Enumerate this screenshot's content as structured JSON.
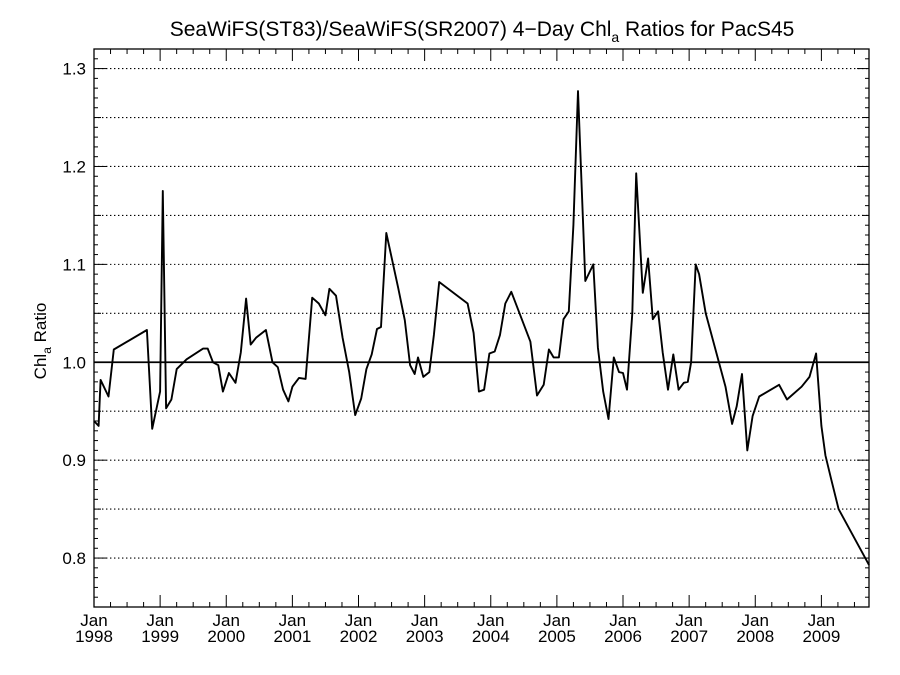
{
  "chart_data": {
    "type": "line",
    "title": {
      "pre": "SeaWiFS(ST83)/SeaWiFS(SR2007) 4−Day Chl",
      "sub": "a",
      "post": " Ratios for PacS45"
    },
    "ylabel": {
      "pre": "Chl",
      "sub": "a",
      "post": " Ratio"
    },
    "xlim": [
      1998.0,
      2009.72
    ],
    "ylim": [
      0.75,
      1.32
    ],
    "yticks": [
      0.8,
      0.9,
      1.0,
      1.1,
      1.2,
      1.3
    ],
    "ytick_labels": [
      "0.8",
      "0.9",
      "1.0",
      "1.1",
      "1.2",
      "1.3"
    ],
    "ygrid": [
      0.75,
      0.8,
      0.85,
      0.9,
      0.95,
      1.05,
      1.1,
      1.15,
      1.2,
      1.25,
      1.3
    ],
    "xticks": [
      1998,
      1999,
      2000,
      2001,
      2002,
      2003,
      2004,
      2005,
      2006,
      2007,
      2008,
      2009
    ],
    "xtick_month": "Jan",
    "xtick_years": [
      "1998",
      "1999",
      "2000",
      "2001",
      "2002",
      "2003",
      "2004",
      "2005",
      "2006",
      "2007",
      "2008",
      "2009"
    ],
    "reference_line": 1.0,
    "grid": "horizontal-dotted",
    "series": [
      {
        "x": [
          1998.0,
          1998.07,
          1998.1,
          1998.22,
          1998.3,
          1998.8,
          1998.88,
          1999.0,
          1999.04,
          1999.09,
          1999.17,
          1999.25,
          1999.4,
          1999.65,
          1999.72,
          1999.8,
          1999.88,
          1999.95,
          2000.04,
          2000.14,
          2000.22,
          2000.3,
          2000.37,
          2000.45,
          2000.6,
          2000.7,
          2000.78,
          2000.86,
          2000.94,
          2001.0,
          2001.1,
          2001.2,
          2001.3,
          2001.4,
          2001.5,
          2001.56,
          2001.66,
          2001.76,
          2001.86,
          2001.95,
          2002.04,
          2002.12,
          2002.2,
          2002.28,
          2002.34,
          2002.42,
          2002.6,
          2002.7,
          2002.78,
          2002.85,
          2002.9,
          2002.98,
          2003.07,
          2003.14,
          2003.22,
          2003.65,
          2003.74,
          2003.82,
          2003.9,
          2003.98,
          2004.06,
          2004.14,
          2004.22,
          2004.31,
          2004.6,
          2004.7,
          2004.8,
          2004.88,
          2004.95,
          2005.03,
          2005.1,
          2005.18,
          2005.25,
          2005.32,
          2005.43,
          2005.55,
          2005.62,
          2005.7,
          2005.78,
          2005.86,
          2005.94,
          2006.0,
          2006.06,
          2006.14,
          2006.2,
          2006.3,
          2006.38,
          2006.45,
          2006.53,
          2006.6,
          2006.68,
          2006.76,
          2006.84,
          2006.92,
          2006.98,
          2007.03,
          2007.1,
          2007.15,
          2007.25,
          2007.55,
          2007.65,
          2007.72,
          2007.8,
          2007.88,
          2007.96,
          2008.06,
          2008.36,
          2008.48,
          2008.7,
          2008.82,
          2008.92,
          2009.0,
          2009.06,
          2009.15,
          2009.26,
          2009.72
        ],
        "y": [
          0.94,
          0.935,
          0.982,
          0.965,
          1.013,
          1.033,
          0.932,
          0.97,
          1.175,
          0.953,
          0.962,
          0.993,
          1.003,
          1.014,
          1.014,
          1.0,
          0.997,
          0.97,
          0.989,
          0.979,
          1.01,
          1.065,
          1.018,
          1.025,
          1.033,
          1.0,
          0.995,
          0.972,
          0.96,
          0.975,
          0.984,
          0.983,
          1.066,
          1.06,
          1.048,
          1.075,
          1.068,
          1.025,
          0.99,
          0.946,
          0.963,
          0.993,
          1.008,
          1.034,
          1.036,
          1.132,
          1.076,
          1.043,
          0.997,
          0.988,
          1.005,
          0.985,
          0.99,
          1.028,
          1.082,
          1.06,
          1.03,
          0.97,
          0.972,
          1.009,
          1.011,
          1.028,
          1.06,
          1.072,
          1.021,
          0.966,
          0.977,
          1.013,
          1.005,
          1.005,
          1.044,
          1.052,
          1.14,
          1.277,
          1.083,
          1.1,
          1.015,
          0.97,
          0.942,
          1.005,
          0.99,
          0.989,
          0.972,
          1.05,
          1.193,
          1.071,
          1.106,
          1.044,
          1.052,
          1.01,
          0.972,
          1.008,
          0.972,
          0.979,
          0.98,
          1.0,
          1.1,
          1.09,
          1.05,
          0.975,
          0.937,
          0.955,
          0.988,
          0.91,
          0.945,
          0.965,
          0.977,
          0.962,
          0.975,
          0.985,
          1.009,
          0.935,
          0.905,
          0.88,
          0.85,
          0.793
        ]
      }
    ]
  }
}
